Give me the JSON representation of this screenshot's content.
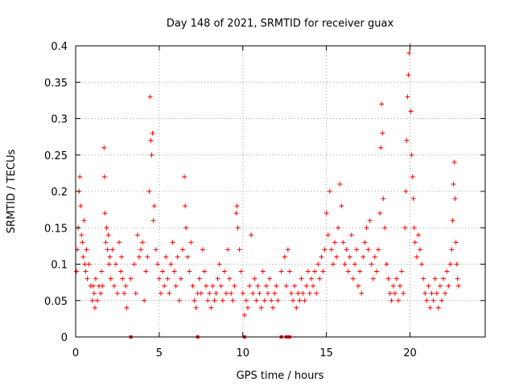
{
  "chart_data": {
    "type": "scatter",
    "title": "Day 148 of 2021, SRMTID for receiver guax",
    "xlabel": "GPS time / hours",
    "ylabel": "SRMTID / TECUs",
    "xlim": [
      0,
      24.5
    ],
    "ylim": [
      0,
      0.4
    ],
    "xticks": [
      0,
      5,
      10,
      15,
      20
    ],
    "xtick_labels": [
      "0",
      "5",
      "10",
      "15",
      "20"
    ],
    "yticks": [
      0,
      0.05,
      0.1,
      0.15,
      0.2,
      0.25,
      0.3,
      0.35,
      0.4
    ],
    "ytick_labels": [
      "0",
      "0.05",
      "0.1",
      "0.15",
      "0.2",
      "0.25",
      "0.3",
      "0.35",
      "0.4"
    ],
    "grid": true,
    "marker": "plus",
    "color": "#ff0000",
    "series": [
      {
        "name": "SRMTID",
        "points": [
          [
            0.05,
            0.09
          ],
          [
            0.1,
            0.12
          ],
          [
            0.15,
            0.15
          ],
          [
            0.2,
            0.2
          ],
          [
            0.25,
            0.22
          ],
          [
            0.3,
            0.18
          ],
          [
            0.35,
            0.14
          ],
          [
            0.4,
            0.13
          ],
          [
            0.45,
            0.11
          ],
          [
            0.5,
            0.16
          ],
          [
            0.55,
            0.1
          ],
          [
            0.6,
            0.09
          ],
          [
            0.65,
            0.12
          ],
          [
            0.7,
            0.08
          ],
          [
            0.8,
            0.1
          ],
          [
            0.9,
            0.07
          ],
          [
            1.0,
            0.05
          ],
          [
            1.05,
            0.07
          ],
          [
            1.1,
            0.06
          ],
          [
            1.15,
            0.04
          ],
          [
            1.2,
            0.08
          ],
          [
            1.3,
            0.05
          ],
          [
            1.4,
            0.07
          ],
          [
            1.5,
            0.06
          ],
          [
            1.55,
            0.09
          ],
          [
            1.6,
            0.07
          ],
          [
            1.7,
            0.26
          ],
          [
            1.72,
            0.22
          ],
          [
            1.75,
            0.17
          ],
          [
            1.8,
            0.13
          ],
          [
            1.85,
            0.15
          ],
          [
            1.9,
            0.12
          ],
          [
            1.95,
            0.14
          ],
          [
            2.0,
            0.1
          ],
          [
            2.05,
            0.11
          ],
          [
            2.1,
            0.08
          ],
          [
            2.2,
            0.12
          ],
          [
            2.3,
            0.07
          ],
          [
            2.4,
            0.1
          ],
          [
            2.5,
            0.06
          ],
          [
            2.6,
            0.13
          ],
          [
            2.7,
            0.09
          ],
          [
            2.75,
            0.11
          ],
          [
            2.8,
            0.08
          ],
          [
            2.9,
            0.06
          ],
          [
            3.0,
            0.07
          ],
          [
            3.05,
            0.04
          ],
          [
            3.3,
            0.08
          ],
          [
            3.5,
            0.1
          ],
          [
            3.6,
            0.06
          ],
          [
            3.7,
            0.14
          ],
          [
            3.8,
            0.11
          ],
          [
            3.9,
            0.12
          ],
          [
            4.0,
            0.13
          ],
          [
            4.1,
            0.05
          ],
          [
            4.2,
            0.09
          ],
          [
            4.3,
            0.11
          ],
          [
            4.4,
            0.2
          ],
          [
            4.45,
            0.33
          ],
          [
            4.5,
            0.27
          ],
          [
            4.55,
            0.25
          ],
          [
            4.6,
            0.28
          ],
          [
            4.65,
            0.16
          ],
          [
            4.7,
            0.18
          ],
          [
            4.8,
            0.12
          ],
          [
            4.9,
            0.1
          ],
          [
            5.0,
            0.08
          ],
          [
            5.1,
            0.06
          ],
          [
            5.2,
            0.09
          ],
          [
            5.3,
            0.07
          ],
          [
            5.4,
            0.11
          ],
          [
            5.5,
            0.08
          ],
          [
            5.6,
            0.06
          ],
          [
            5.7,
            0.1
          ],
          [
            5.8,
            0.13
          ],
          [
            5.9,
            0.09
          ],
          [
            6.0,
            0.07
          ],
          [
            6.1,
            0.11
          ],
          [
            6.2,
            0.05
          ],
          [
            6.3,
            0.08
          ],
          [
            6.4,
            0.12
          ],
          [
            6.5,
            0.22
          ],
          [
            6.55,
            0.18
          ],
          [
            6.6,
            0.15
          ],
          [
            6.7,
            0.11
          ],
          [
            6.8,
            0.09
          ],
          [
            6.9,
            0.13
          ],
          [
            7.0,
            0.07
          ],
          [
            7.1,
            0.05
          ],
          [
            7.2,
            0.04
          ],
          [
            7.3,
            0.06
          ],
          [
            7.4,
            0.08
          ],
          [
            7.5,
            0.06
          ],
          [
            7.6,
            0.12
          ],
          [
            7.7,
            0.09
          ],
          [
            7.8,
            0.07
          ],
          [
            7.9,
            0.05
          ],
          [
            8.0,
            0.06
          ],
          [
            8.1,
            0.04
          ],
          [
            8.2,
            0.07
          ],
          [
            8.3,
            0.05
          ],
          [
            8.4,
            0.06
          ],
          [
            8.5,
            0.08
          ],
          [
            8.6,
            0.1
          ],
          [
            8.7,
            0.07
          ],
          [
            8.8,
            0.05
          ],
          [
            8.9,
            0.09
          ],
          [
            9.0,
            0.06
          ],
          [
            9.1,
            0.12
          ],
          [
            9.2,
            0.08
          ],
          [
            9.3,
            0.06
          ],
          [
            9.4,
            0.05
          ],
          [
            9.5,
            0.07
          ],
          [
            9.6,
            0.17
          ],
          [
            9.65,
            0.18
          ],
          [
            9.7,
            0.15
          ],
          [
            9.8,
            0.12
          ],
          [
            9.9,
            0.09
          ],
          [
            10.0,
            0.06
          ],
          [
            10.1,
            0.03
          ],
          [
            10.2,
            0.05
          ],
          [
            10.3,
            0.04
          ],
          [
            10.4,
            0.07
          ],
          [
            10.5,
            0.14
          ],
          [
            10.6,
            0.06
          ],
          [
            10.7,
            0.08
          ],
          [
            10.8,
            0.05
          ],
          [
            10.9,
            0.07
          ],
          [
            11.0,
            0.06
          ],
          [
            11.1,
            0.04
          ],
          [
            11.2,
            0.09
          ],
          [
            11.3,
            0.05
          ],
          [
            11.4,
            0.07
          ],
          [
            11.5,
            0.06
          ],
          [
            11.6,
            0.08
          ],
          [
            11.7,
            0.05
          ],
          [
            11.8,
            0.04
          ],
          [
            11.9,
            0.06
          ],
          [
            12.0,
            0.07
          ],
          [
            12.1,
            0.05
          ],
          [
            12.3,
            0.09
          ],
          [
            12.5,
            0.11
          ],
          [
            12.6,
            0.07
          ],
          [
            12.7,
            0.12
          ],
          [
            12.8,
            0.09
          ],
          [
            12.9,
            0.06
          ],
          [
            13.0,
            0.05
          ],
          [
            13.1,
            0.07
          ],
          [
            13.2,
            0.04
          ],
          [
            13.3,
            0.06
          ],
          [
            13.4,
            0.05
          ],
          [
            13.5,
            0.08
          ],
          [
            13.6,
            0.06
          ],
          [
            13.7,
            0.05
          ],
          [
            13.8,
            0.07
          ],
          [
            13.9,
            0.09
          ],
          [
            14.0,
            0.06
          ],
          [
            14.1,
            0.08
          ],
          [
            14.2,
            0.07
          ],
          [
            14.3,
            0.09
          ],
          [
            14.4,
            0.06
          ],
          [
            14.5,
            0.1
          ],
          [
            14.6,
            0.08
          ],
          [
            14.7,
            0.11
          ],
          [
            14.8,
            0.09
          ],
          [
            14.9,
            0.12
          ],
          [
            15.0,
            0.17
          ],
          [
            15.1,
            0.14
          ],
          [
            15.2,
            0.2
          ],
          [
            15.3,
            0.12
          ],
          [
            15.4,
            0.1
          ],
          [
            15.5,
            0.13
          ],
          [
            15.6,
            0.11
          ],
          [
            15.7,
            0.15
          ],
          [
            15.8,
            0.21
          ],
          [
            15.9,
            0.18
          ],
          [
            16.0,
            0.13
          ],
          [
            16.1,
            0.1
          ],
          [
            16.2,
            0.12
          ],
          [
            16.3,
            0.09
          ],
          [
            16.4,
            0.11
          ],
          [
            16.5,
            0.14
          ],
          [
            16.6,
            0.08
          ],
          [
            16.7,
            0.1
          ],
          [
            16.8,
            0.12
          ],
          [
            16.9,
            0.07
          ],
          [
            17.0,
            0.09
          ],
          [
            17.1,
            0.06
          ],
          [
            17.2,
            0.11
          ],
          [
            17.3,
            0.13
          ],
          [
            17.4,
            0.15
          ],
          [
            17.5,
            0.12
          ],
          [
            17.6,
            0.16
          ],
          [
            17.7,
            0.1
          ],
          [
            17.8,
            0.08
          ],
          [
            17.9,
            0.11
          ],
          [
            18.0,
            0.09
          ],
          [
            18.1,
            0.12
          ],
          [
            18.2,
            0.17
          ],
          [
            18.25,
            0.26
          ],
          [
            18.3,
            0.32
          ],
          [
            18.35,
            0.28
          ],
          [
            18.4,
            0.19
          ],
          [
            18.5,
            0.15
          ],
          [
            18.6,
            0.1
          ],
          [
            18.7,
            0.08
          ],
          [
            18.8,
            0.06
          ],
          [
            18.9,
            0.05
          ],
          [
            19.0,
            0.07
          ],
          [
            19.1,
            0.06
          ],
          [
            19.2,
            0.08
          ],
          [
            19.3,
            0.05
          ],
          [
            19.4,
            0.07
          ],
          [
            19.5,
            0.09
          ],
          [
            19.6,
            0.06
          ],
          [
            19.7,
            0.15
          ],
          [
            19.75,
            0.2
          ],
          [
            19.8,
            0.27
          ],
          [
            19.85,
            0.33
          ],
          [
            19.9,
            0.36
          ],
          [
            19.95,
            0.39
          ],
          [
            20.0,
            0.4
          ],
          [
            20.05,
            0.31
          ],
          [
            20.1,
            0.25
          ],
          [
            20.15,
            0.22
          ],
          [
            20.2,
            0.19
          ],
          [
            20.25,
            0.15
          ],
          [
            20.3,
            0.13
          ],
          [
            20.4,
            0.11
          ],
          [
            20.5,
            0.14
          ],
          [
            20.6,
            0.12
          ],
          [
            20.7,
            0.1
          ],
          [
            20.8,
            0.08
          ],
          [
            20.9,
            0.06
          ],
          [
            21.0,
            0.05
          ],
          [
            21.1,
            0.07
          ],
          [
            21.2,
            0.04
          ],
          [
            21.3,
            0.06
          ],
          [
            21.4,
            0.05
          ],
          [
            21.5,
            0.08
          ],
          [
            21.6,
            0.06
          ],
          [
            21.7,
            0.04
          ],
          [
            21.8,
            0.07
          ],
          [
            21.9,
            0.05
          ],
          [
            22.0,
            0.08
          ],
          [
            22.1,
            0.06
          ],
          [
            22.2,
            0.09
          ],
          [
            22.3,
            0.07
          ],
          [
            22.4,
            0.1
          ],
          [
            22.5,
            0.12
          ],
          [
            22.55,
            0.16
          ],
          [
            22.6,
            0.21
          ],
          [
            22.65,
            0.24
          ],
          [
            22.7,
            0.19
          ],
          [
            22.75,
            0.13
          ],
          [
            22.8,
            0.1
          ],
          [
            22.85,
            0.08
          ],
          [
            22.9,
            0.07
          ]
        ]
      }
    ],
    "gap_markers_x": [
      3.3,
      7.3,
      10.1,
      12.3,
      12.6,
      12.8
    ],
    "gap_markers_y": 0
  }
}
